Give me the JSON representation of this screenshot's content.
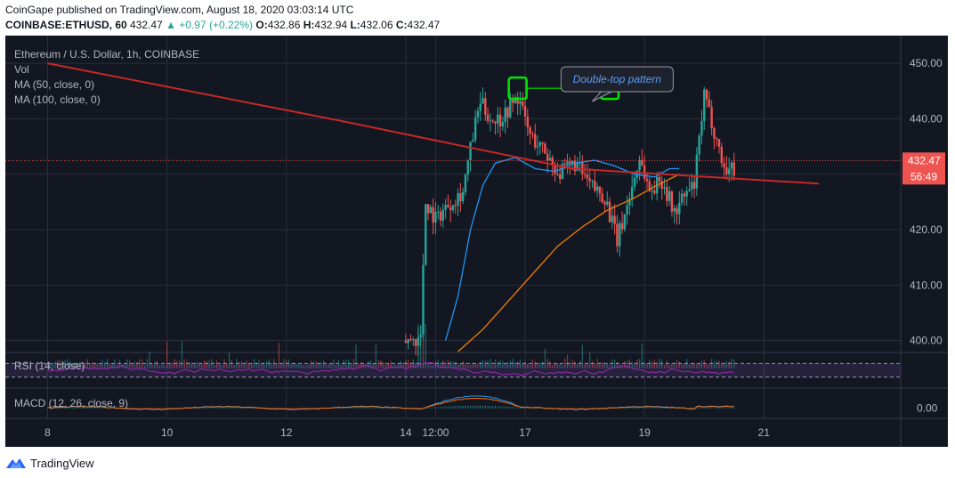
{
  "header": {
    "publisher_line": "CoinGape published on TradingView.com, August 18, 2020 03:03:14 UTC",
    "symbol": "COINBASE:ETHUSD, 60",
    "last": "432.47",
    "change": "▲ +0.97 (+0.22%)",
    "ohlc": [
      {
        "label": "O:",
        "value": "432.86"
      },
      {
        "label": "H:",
        "value": "432.94"
      },
      {
        "label": "L:",
        "value": "432.06"
      },
      {
        "label": "C:",
        "value": "432.47"
      }
    ]
  },
  "legend": {
    "title": "Ethereum / U.S. Dollar, 1h, COINBASE",
    "vol": "Vol",
    "ma50": "MA (50, close, 0)",
    "ma100": "MA (100, close, 0)",
    "rsi": "RSI (14, close)",
    "macd": "MACD (12, 26, close, 9)"
  },
  "annotation": {
    "text": "Double-top pattern"
  },
  "price_tag": {
    "price": "432.47",
    "countdown": "56:49"
  },
  "footer": {
    "brand": "TradingView"
  },
  "colors": {
    "background": "#131722",
    "up": "#26a69a",
    "down": "#ef5350",
    "ma50": "#2196f3",
    "ma100": "#f57c00",
    "trendline": "#c62828",
    "box": "#00e600",
    "rsi": "#9c27b0",
    "macd": "#2196f3",
    "signal": "#ff6d00"
  },
  "chart_data": {
    "type": "candlestick",
    "title": "Ethereum / U.S. Dollar, 1h, COINBASE",
    "y_ticks": [
      400,
      410,
      420,
      430,
      440,
      450
    ],
    "y_tick_labels": [
      "400.00",
      "410.00",
      "420.00",
      "430.00",
      "440.00",
      "450.00"
    ],
    "ylim": [
      398,
      455
    ],
    "x_tick_labels": [
      "8",
      "10",
      "12",
      "14",
      "12:00",
      "17",
      "19",
      "21"
    ],
    "x_ticks_hours": [
      0,
      48,
      96,
      144,
      156,
      192,
      240,
      288
    ],
    "xlim_hours": [
      -17,
      343
    ],
    "last_price": 432.47,
    "ma50": [
      [
        160,
        400
      ],
      [
        165,
        408
      ],
      [
        170,
        420
      ],
      [
        175,
        428
      ],
      [
        180,
        432
      ],
      [
        188,
        433
      ],
      [
        196,
        431
      ],
      [
        204,
        430.5
      ],
      [
        212,
        432
      ],
      [
        220,
        432.5
      ],
      [
        228,
        431.5
      ],
      [
        236,
        430
      ],
      [
        244,
        429.5
      ],
      [
        250,
        431
      ],
      [
        254,
        431
      ]
    ],
    "ma100": [
      [
        165,
        398
      ],
      [
        175,
        402
      ],
      [
        185,
        407
      ],
      [
        195,
        412
      ],
      [
        205,
        417
      ],
      [
        215,
        420.5
      ],
      [
        225,
        423.5
      ],
      [
        235,
        425.5
      ],
      [
        245,
        428
      ],
      [
        254,
        430
      ]
    ],
    "trendline": [
      [
        0,
        450
      ],
      [
        117,
        439.7
      ],
      [
        211,
        431
      ],
      [
        310,
        428.3
      ]
    ],
    "double_top_level": 445.5,
    "double_top_hours": [
      189,
      226
    ],
    "rsi_levels": [
      70,
      30
    ],
    "rsi_range": [
      0,
      100
    ],
    "macd_tick_labels": [
      "0.00"
    ],
    "macd_range": [
      -4,
      8
    ]
  }
}
